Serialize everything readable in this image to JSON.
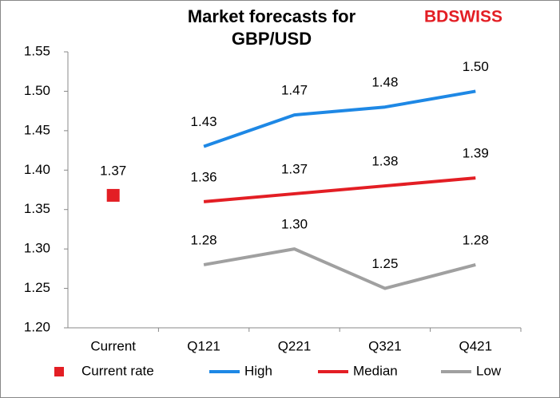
{
  "chart_data": {
    "type": "line",
    "title": [
      "Market forecasts for",
      "GBP/USD"
    ],
    "logo": "BDSWISS",
    "categories": [
      "Current",
      "Q121",
      "Q221",
      "Q321",
      "Q421"
    ],
    "series": [
      {
        "name": "Current rate",
        "color": "#e31e24",
        "marker": "square",
        "values": [
          1.368,
          null,
          null,
          null,
          null
        ],
        "value_labels": [
          "1.37",
          null,
          null,
          null,
          null
        ]
      },
      {
        "name": "High",
        "color": "#1e88e5",
        "values": [
          null,
          1.43,
          1.47,
          1.48,
          1.5
        ],
        "value_labels": [
          null,
          "1.43",
          "1.47",
          "1.48",
          "1.50"
        ]
      },
      {
        "name": "Median",
        "color": "#e31e24",
        "values": [
          null,
          1.36,
          1.37,
          1.38,
          1.39
        ],
        "value_labels": [
          null,
          "1.36",
          "1.37",
          "1.38",
          "1.39"
        ]
      },
      {
        "name": "Low",
        "color": "#a0a0a0",
        "values": [
          null,
          1.28,
          1.3,
          1.25,
          1.28
        ],
        "value_labels": [
          null,
          "1.28",
          "1.30",
          "1.25",
          "1.28"
        ]
      }
    ],
    "ylim": [
      1.2,
      1.55
    ],
    "yticks": [
      {
        "value": 1.2,
        "label": "1.20"
      },
      {
        "value": 1.25,
        "label": "1.25"
      },
      {
        "value": 1.3,
        "label": "1.30"
      },
      {
        "value": 1.35,
        "label": "1.35"
      },
      {
        "value": 1.4,
        "label": "1.40"
      },
      {
        "value": 1.45,
        "label": "1.45"
      },
      {
        "value": 1.5,
        "label": "1.50"
      },
      {
        "value": 1.55,
        "label": "1.55"
      }
    ],
    "grid": false,
    "legend": "bottom"
  }
}
